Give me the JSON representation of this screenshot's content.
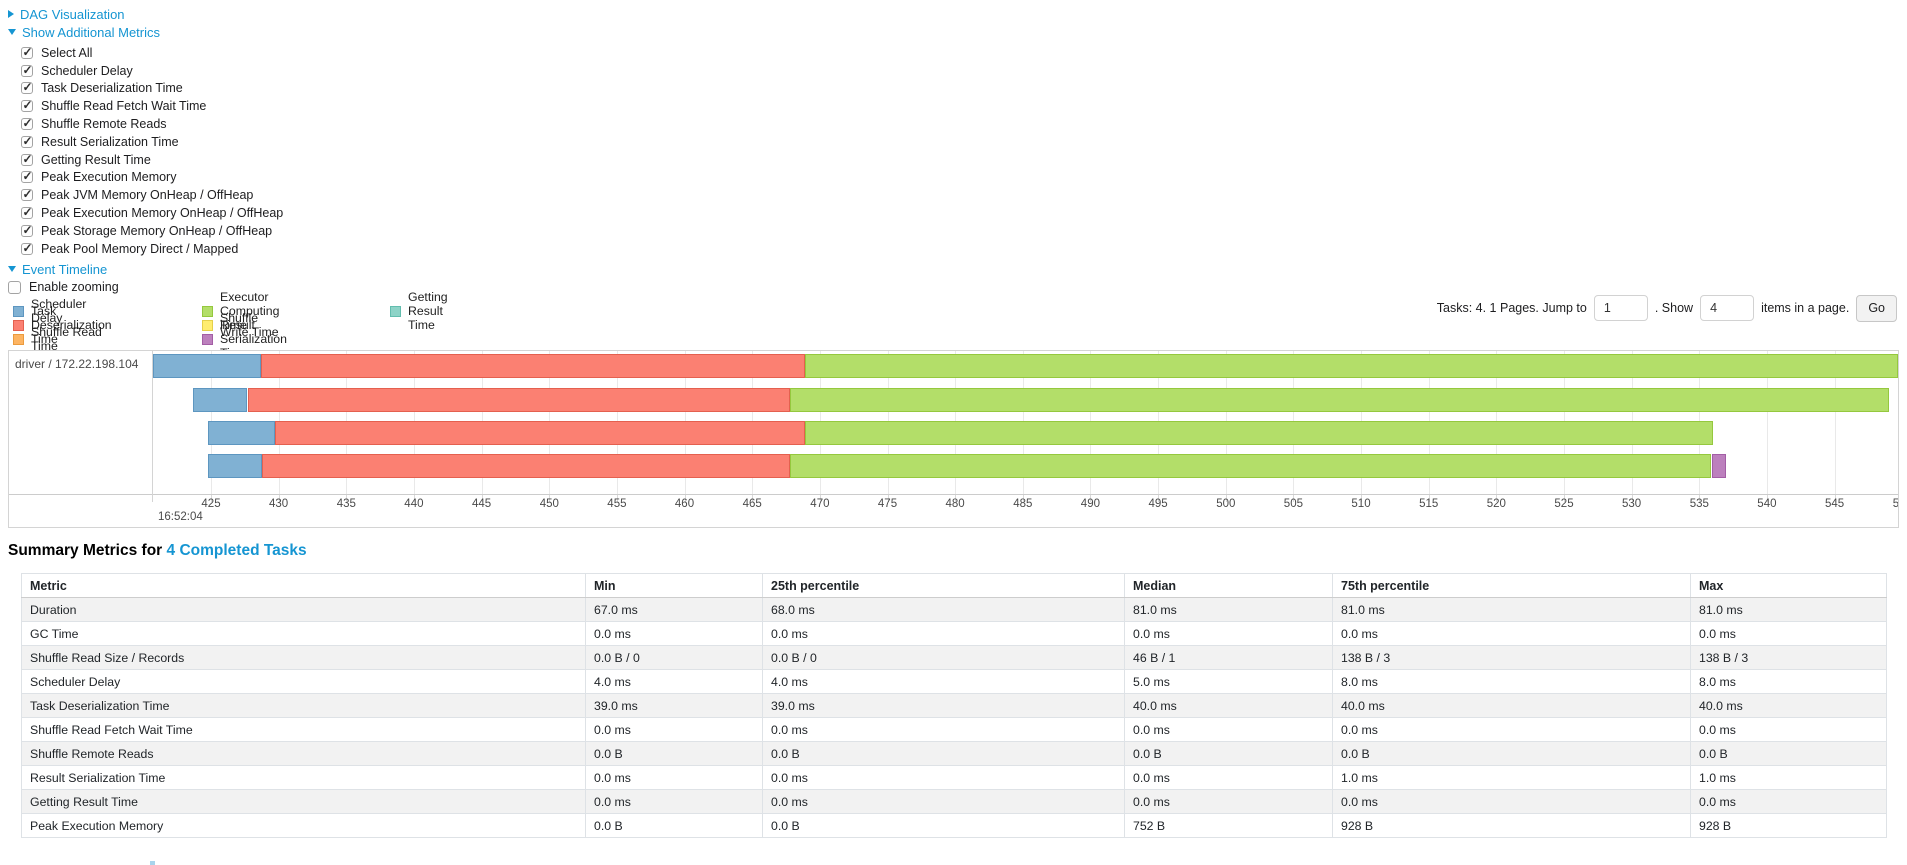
{
  "links": {
    "dag": {
      "label": "DAG Visualization",
      "state": "collapsed"
    },
    "metrics": {
      "label": "Show Additional Metrics",
      "state": "expanded"
    },
    "timeline": {
      "label": "Event Timeline",
      "state": "expanded"
    }
  },
  "metric_checkboxes": [
    {
      "label": "Select All",
      "checked": true
    },
    {
      "label": "Scheduler Delay",
      "checked": true
    },
    {
      "label": "Task Deserialization Time",
      "checked": true
    },
    {
      "label": "Shuffle Read Fetch Wait Time",
      "checked": true
    },
    {
      "label": "Shuffle Remote Reads",
      "checked": true
    },
    {
      "label": "Result Serialization Time",
      "checked": true
    },
    {
      "label": "Getting Result Time",
      "checked": true
    },
    {
      "label": "Peak Execution Memory",
      "checked": true
    },
    {
      "label": "Peak JVM Memory OnHeap / OffHeap",
      "checked": true
    },
    {
      "label": "Peak Execution Memory OnHeap / OffHeap",
      "checked": true
    },
    {
      "label": "Peak Storage Memory OnHeap / OffHeap",
      "checked": true
    },
    {
      "label": "Peak Pool Memory Direct / Mapped",
      "checked": true
    }
  ],
  "enable_zooming": {
    "label": "Enable zooming",
    "checked": false
  },
  "legend": {
    "colors": {
      "scheduler_delay": {
        "label": "Scheduler Delay",
        "fill": "#80B1D3",
        "border": "#5d96c0"
      },
      "task_deserialization": {
        "label": "Task Deserialization Time",
        "fill": "#FB8072",
        "border": "#e4604f"
      },
      "shuffle_read": {
        "label": "Shuffle Read Time",
        "fill": "#FDB462",
        "border": "#eb9b3e"
      },
      "executor_computing": {
        "label": "Executor Computing Time",
        "fill": "#B3DE69",
        "border": "#95c83e"
      },
      "shuffle_write": {
        "label": "Shuffle Write Time",
        "fill": "#FFED6F",
        "border": "#e5d04a"
      },
      "result_serialization": {
        "label": "Result Serialization Time",
        "fill": "#BC80BD",
        "border": "#a35ea5"
      },
      "getting_result": {
        "label": "Getting Result Time",
        "fill": "#8DD3C7",
        "border": "#62bdae"
      }
    },
    "columns": [
      [
        "scheduler_delay",
        "task_deserialization",
        "shuffle_read"
      ],
      [
        "executor_computing",
        "shuffle_write",
        "result_serialization"
      ],
      [
        "getting_result"
      ]
    ]
  },
  "pagination": {
    "prefix": "Tasks: 4. 1 Pages. Jump to",
    "jump_value": "1",
    "show_label": ". Show",
    "show_value": "4",
    "suffix": "items in a page.",
    "go_label": "Go"
  },
  "timeline": {
    "group_label": "driver / 172.22.198.104",
    "axis": {
      "start": 425,
      "end": 550,
      "step": 5,
      "major_label": "16:52:04"
    },
    "bars": [
      {
        "segments": [
          {
            "kind": "scheduler_delay",
            "start": 420.7,
            "end": 428.7
          },
          {
            "kind": "task_deserialization",
            "start": 428.7,
            "end": 468.9
          },
          {
            "kind": "executor_computing",
            "start": 468.9,
            "end": 549.7
          }
        ]
      },
      {
        "segments": [
          {
            "kind": "scheduler_delay",
            "start": 423.7,
            "end": 427.7
          },
          {
            "kind": "task_deserialization",
            "start": 427.7,
            "end": 467.8
          },
          {
            "kind": "executor_computing",
            "start": 467.8,
            "end": 549.0
          }
        ]
      },
      {
        "segments": [
          {
            "kind": "scheduler_delay",
            "start": 424.8,
            "end": 429.7
          },
          {
            "kind": "task_deserialization",
            "start": 429.7,
            "end": 468.9
          },
          {
            "kind": "executor_computing",
            "start": 468.9,
            "end": 536.0
          }
        ]
      },
      {
        "segments": [
          {
            "kind": "scheduler_delay",
            "start": 424.8,
            "end": 428.8
          },
          {
            "kind": "task_deserialization",
            "start": 428.8,
            "end": 467.8
          },
          {
            "kind": "executor_computing",
            "start": 467.8,
            "end": 535.9
          },
          {
            "kind": "result_serialization",
            "start": 535.9,
            "end": 537.0
          }
        ]
      }
    ]
  },
  "summary": {
    "title_prefix": "Summary Metrics for",
    "title_link": "4 Completed Tasks",
    "table": {
      "headers": [
        "Metric",
        "Min",
        "25th percentile",
        "Median",
        "75th percentile",
        "Max"
      ],
      "rows": [
        [
          "Duration",
          "67.0 ms",
          "68.0 ms",
          "81.0 ms",
          "81.0 ms",
          "81.0 ms"
        ],
        [
          "GC Time",
          "0.0 ms",
          "0.0 ms",
          "0.0 ms",
          "0.0 ms",
          "0.0 ms"
        ],
        [
          "Shuffle Read Size / Records",
          "0.0 B / 0",
          "0.0 B / 0",
          "46 B / 1",
          "138 B / 3",
          "138 B / 3"
        ],
        [
          "Scheduler Delay",
          "4.0 ms",
          "4.0 ms",
          "5.0 ms",
          "8.0 ms",
          "8.0 ms"
        ],
        [
          "Task Deserialization Time",
          "39.0 ms",
          "39.0 ms",
          "40.0 ms",
          "40.0 ms",
          "40.0 ms"
        ],
        [
          "Shuffle Read Fetch Wait Time",
          "0.0 ms",
          "0.0 ms",
          "0.0 ms",
          "0.0 ms",
          "0.0 ms"
        ],
        [
          "Shuffle Remote Reads",
          "0.0 B",
          "0.0 B",
          "0.0 B",
          "0.0 B",
          "0.0 B"
        ],
        [
          "Result Serialization Time",
          "0.0 ms",
          "0.0 ms",
          "0.0 ms",
          "1.0 ms",
          "1.0 ms"
        ],
        [
          "Getting Result Time",
          "0.0 ms",
          "0.0 ms",
          "0.0 ms",
          "0.0 ms",
          "0.0 ms"
        ],
        [
          "Peak Execution Memory",
          "0.0 B",
          "0.0 B",
          "752 B",
          "928 B",
          "928 B"
        ]
      ]
    }
  }
}
